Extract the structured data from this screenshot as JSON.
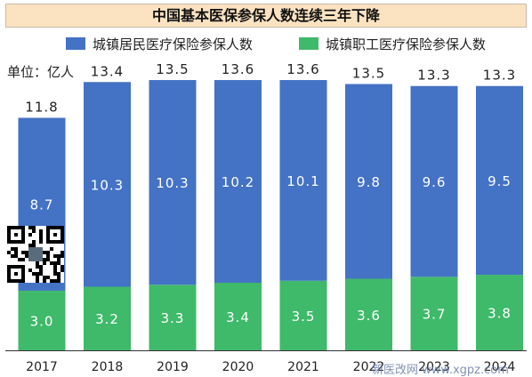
{
  "chart_data": {
    "type": "bar",
    "stacked": true,
    "title": "中国基本医保参保人数连续三年下降",
    "unit_label": "单位：亿人",
    "categories": [
      "2017",
      "2018",
      "2019",
      "2020",
      "2021",
      "2022",
      "2023",
      "2024"
    ],
    "series": [
      {
        "name": "城镇职工医疗保险参保人数",
        "color": "#3fb96a",
        "values": [
          3.0,
          3.2,
          3.3,
          3.4,
          3.5,
          3.6,
          3.7,
          3.8
        ]
      },
      {
        "name": "城镇居民医疗保险参保人数",
        "color": "#4472c4",
        "values": [
          8.7,
          10.3,
          10.3,
          10.2,
          10.1,
          9.8,
          9.6,
          9.5
        ]
      }
    ],
    "totals": [
      11.8,
      13.4,
      13.5,
      13.6,
      13.6,
      13.5,
      13.3,
      13.3
    ],
    "legend_position": "top",
    "grid": false,
    "ylim": [
      0,
      13.6
    ]
  },
  "watermark": "新医改网 www.xgpz.com",
  "colors": {
    "title_bg": "#fbe3c2",
    "blue": "#4472c4",
    "green": "#3fb96a"
  }
}
